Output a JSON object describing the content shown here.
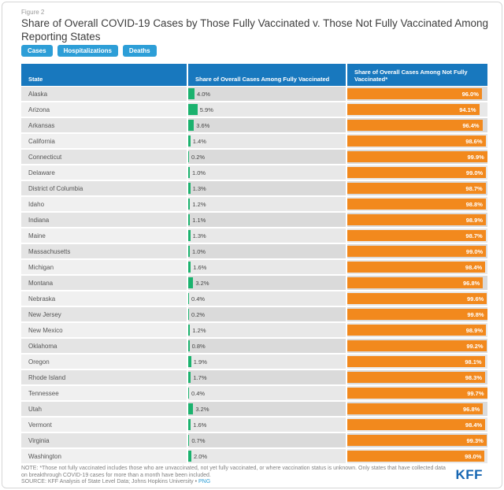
{
  "figure_label": "Figure 2",
  "title": "Share of Overall COVID-19 Cases by Those Fully Vaccinated v. Those Not Fully Vaccinated Among Reporting States",
  "tabs": [
    {
      "label": "Cases"
    },
    {
      "label": "Hospitalizations"
    },
    {
      "label": "Deaths"
    }
  ],
  "table_headers": {
    "state": "State",
    "fully": "Share of Overall Cases Among Fully Vaccinated",
    "not_fully": "Share of Overall Cases Among Not Fully Vaccinated*"
  },
  "note": "NOTE: *Those not fully vaccinated includes those who are unvaccinated, not yet fully vaccinated, or where vaccination status is unknown. Only states that have collected data on breakthrough COVID-19 cases for more than a month have been included.",
  "source": "SOURCE: KFF Analysis of State Level Data; Johns Hopkins University",
  "source_separator": "•",
  "png_label": "PNG",
  "logo_text": "KFF",
  "colors": {
    "green_bar": "#1bb26e",
    "orange_bar": "#f2891d",
    "header_blue": "#1878be",
    "tab_blue": "#2d9ed7",
    "link_blue": "#2d9ed7",
    "logo_blue": "#1666b2"
  },
  "chart_data": {
    "type": "bar",
    "orientation": "horizontal",
    "unit": "%",
    "xlim": [
      0,
      100
    ],
    "title": "Share of Overall COVID-19 Cases by Those Fully Vaccinated v. Those Not Fully Vaccinated Among Reporting States",
    "categories": [
      "Alaska",
      "Arizona",
      "Arkansas",
      "California",
      "Connecticut",
      "Delaware",
      "District of Columbia",
      "Idaho",
      "Indiana",
      "Maine",
      "Massachusetts",
      "Michigan",
      "Montana",
      "Nebraska",
      "New Jersey",
      "New Mexico",
      "Oklahoma",
      "Oregon",
      "Rhode Island",
      "Tennessee",
      "Utah",
      "Vermont",
      "Virginia",
      "Washington"
    ],
    "series": [
      {
        "name": "Share of Overall Cases Among Fully Vaccinated",
        "color": "#1bb26e",
        "values": [
          4.0,
          5.9,
          3.6,
          1.4,
          0.2,
          1.0,
          1.3,
          1.2,
          1.1,
          1.3,
          1.0,
          1.6,
          3.2,
          0.4,
          0.2,
          1.2,
          0.8,
          1.9,
          1.7,
          0.4,
          3.2,
          1.6,
          0.7,
          2.0
        ]
      },
      {
        "name": "Share of Overall Cases Among Not Fully Vaccinated*",
        "color": "#f2891d",
        "values": [
          96.0,
          94.1,
          96.4,
          98.6,
          99.9,
          99.0,
          98.7,
          98.8,
          98.9,
          98.7,
          99.0,
          98.4,
          96.8,
          99.6,
          99.8,
          98.9,
          99.2,
          98.1,
          98.3,
          99.7,
          96.8,
          98.4,
          99.3,
          98.0
        ]
      }
    ]
  }
}
